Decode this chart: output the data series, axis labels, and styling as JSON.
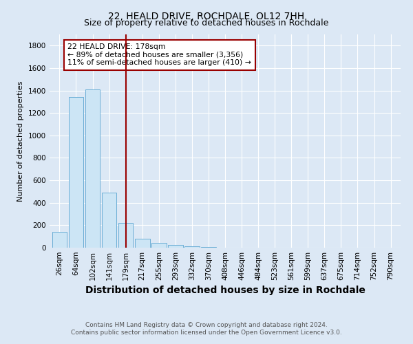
{
  "title": "22, HEALD DRIVE, ROCHDALE, OL12 7HH",
  "subtitle": "Size of property relative to detached houses in Rochdale",
  "xlabel": "Distribution of detached houses by size in Rochdale",
  "ylabel": "Number of detached properties",
  "bar_labels": [
    "26sqm",
    "64sqm",
    "102sqm",
    "141sqm",
    "179sqm",
    "217sqm",
    "255sqm",
    "293sqm",
    "332sqm",
    "370sqm",
    "408sqm",
    "446sqm",
    "484sqm",
    "523sqm",
    "561sqm",
    "599sqm",
    "637sqm",
    "675sqm",
    "714sqm",
    "752sqm",
    "790sqm"
  ],
  "bar_values": [
    140,
    1340,
    1410,
    490,
    220,
    80,
    45,
    22,
    10,
    5,
    2,
    1,
    0,
    0,
    0,
    0,
    0,
    0,
    0,
    0,
    0
  ],
  "bar_color": "#cce5f5",
  "bar_edgecolor": "#6baed6",
  "redline_index": 4,
  "redline_color": "#990000",
  "annotation_box_color": "#ffffff",
  "annotation_border_color": "#990000",
  "annotation_text_line1": "22 HEALD DRIVE: 178sqm",
  "annotation_text_line2": "← 89% of detached houses are smaller (3,356)",
  "annotation_text_line3": "11% of semi-detached houses are larger (410) →",
  "ylim": [
    0,
    1900
  ],
  "yticks": [
    0,
    200,
    400,
    600,
    800,
    1000,
    1200,
    1400,
    1600,
    1800
  ],
  "footnote1": "Contains HM Land Registry data © Crown copyright and database right 2024.",
  "footnote2": "Contains public sector information licensed under the Open Government Licence v3.0.",
  "bg_color": "#dce8f5",
  "grid_color": "#ffffff",
  "title_fontsize": 10,
  "subtitle_fontsize": 9,
  "xlabel_fontsize": 10,
  "ylabel_fontsize": 8,
  "tick_fontsize": 7.5,
  "footnote_fontsize": 6.5
}
